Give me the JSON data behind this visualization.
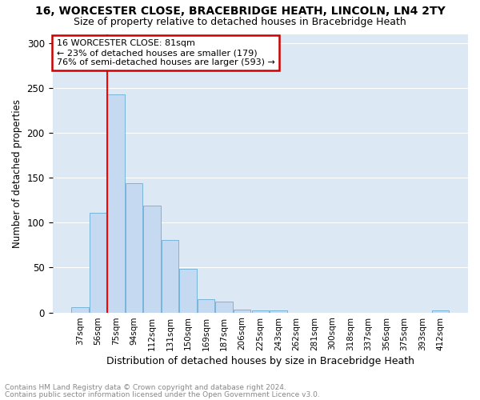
{
  "title1": "16, WORCESTER CLOSE, BRACEBRIDGE HEATH, LINCOLN, LN4 2TY",
  "title2": "Size of property relative to detached houses in Bracebridge Heath",
  "xlabel": "Distribution of detached houses by size in Bracebridge Heath",
  "ylabel": "Number of detached properties",
  "categories": [
    "37sqm",
    "56sqm",
    "75sqm",
    "94sqm",
    "112sqm",
    "131sqm",
    "150sqm",
    "169sqm",
    "187sqm",
    "206sqm",
    "225sqm",
    "243sqm",
    "262sqm",
    "281sqm",
    "300sqm",
    "318sqm",
    "337sqm",
    "356sqm",
    "375sqm",
    "393sqm",
    "412sqm"
  ],
  "values": [
    6,
    111,
    243,
    144,
    119,
    81,
    49,
    15,
    12,
    3,
    2,
    2,
    0,
    0,
    0,
    0,
    0,
    0,
    0,
    0,
    2
  ],
  "bar_color": "#c5d9f0",
  "bar_edge_color": "#6baed6",
  "red_line_x": 2.0,
  "annotation_text": "16 WORCESTER CLOSE: 81sqm\n← 23% of detached houses are smaller (179)\n76% of semi-detached houses are larger (593) →",
  "annotation_box_color": "#ffffff",
  "annotation_box_edge": "#cc0000",
  "footnote1": "Contains HM Land Registry data © Crown copyright and database right 2024.",
  "footnote2": "Contains public sector information licensed under the Open Government Licence v3.0.",
  "ylim": [
    0,
    310
  ],
  "fig_bg_color": "#ffffff",
  "plot_bg_color": "#dce9f5",
  "grid_color": "#ffffff",
  "title1_fontsize": 10,
  "title2_fontsize": 9,
  "ylabel_fontsize": 8.5,
  "xlabel_fontsize": 9,
  "annotation_fontsize": 8,
  "tick_fontsize": 7.5,
  "footnote_fontsize": 6.5
}
